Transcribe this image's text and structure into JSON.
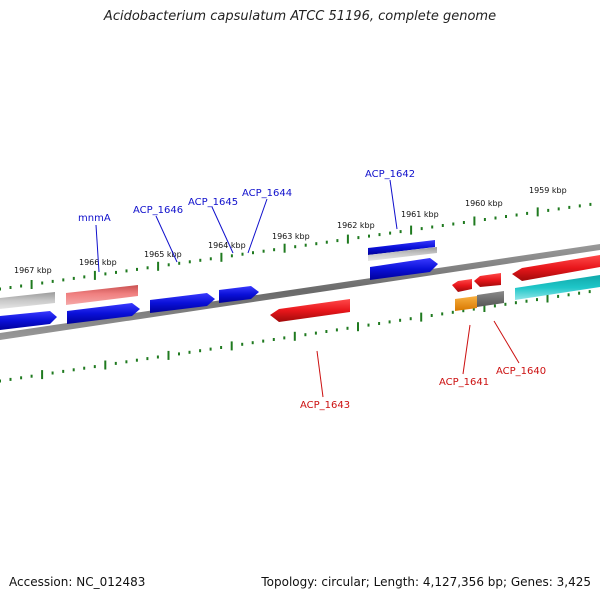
{
  "title": "Acidobacterium capsulatum ATCC 51196, complete genome",
  "footer": {
    "accession": "Accession: NC_012483",
    "summary": "Topology: circular; Length: 4,127,356 bp; Genes: 3,425"
  },
  "colors": {
    "forward_gene": "#0a10d8",
    "reverse_gene": "#e8161b",
    "pseudo_gene": "#bdbdbd",
    "light_red_gene": "#f08080",
    "cyan_gene": "#1ec6c8",
    "orange_gene": "#f0900a",
    "gray_gene": "#6e6e6e",
    "backbone": "#7a7a7a",
    "ruler": "#1f7a1f",
    "label_forward": "#1010cc",
    "label_reverse": "#cc1010"
  },
  "ruler_ticks": [
    {
      "label": "1967 kbp"
    },
    {
      "label": "1966 kbp"
    },
    {
      "label": "1965 kbp"
    },
    {
      "label": "1964 kbp"
    },
    {
      "label": "1963 kbp"
    },
    {
      "label": "1962 kbp"
    },
    {
      "label": "1961 kbp"
    },
    {
      "label": "1960 kbp"
    },
    {
      "label": "1959 kbp"
    }
  ],
  "gene_labels": [
    {
      "name": "mnmA",
      "strand": "forward"
    },
    {
      "name": "ACP_1646",
      "strand": "forward"
    },
    {
      "name": "ACP_1645",
      "strand": "forward"
    },
    {
      "name": "ACP_1644",
      "strand": "forward"
    },
    {
      "name": "ACP_1642",
      "strand": "forward"
    },
    {
      "name": "ACP_1643",
      "strand": "reverse"
    },
    {
      "name": "ACP_1641",
      "strand": "reverse"
    },
    {
      "name": "ACP_1640",
      "strand": "reverse"
    }
  ]
}
